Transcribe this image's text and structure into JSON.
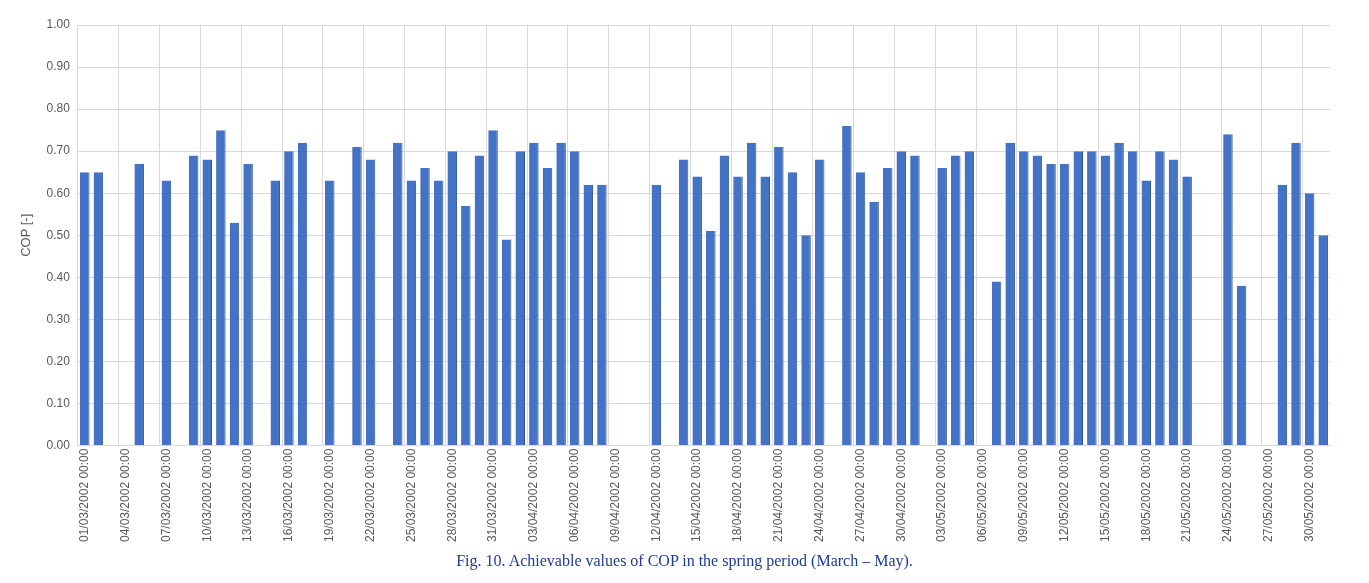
{
  "chart_data": {
    "type": "bar",
    "ylabel": "COP [-]",
    "categories": [
      "01/03/2002 00:00",
      null,
      null,
      "04/03/2002 00:00",
      null,
      null,
      "07/03/2002 00:00",
      null,
      null,
      "10/03/2002 00:00",
      null,
      null,
      "13/03/2002 00:00",
      null,
      null,
      "16/03/2002 00:00",
      null,
      null,
      "19/03/2002 00:00",
      null,
      null,
      "22/03/2002 00:00",
      null,
      null,
      "25/03/2002 00:00",
      null,
      null,
      "28/03/2002 00:00",
      null,
      null,
      "31/03/2002 00:00",
      null,
      null,
      "03/04/2002 00:00",
      null,
      null,
      "06/04/2002 00:00",
      null,
      null,
      "09/04/2002 00:00",
      null,
      null,
      "12/04/2002 00:00",
      null,
      null,
      "15/04/2002 00:00",
      null,
      null,
      "18/04/2002 00:00",
      null,
      null,
      "21/04/2002 00:00",
      null,
      null,
      "24/04/2002 00:00",
      null,
      null,
      "27/04/2002 00:00",
      null,
      null,
      "30/04/2002 00:00",
      null,
      null,
      "03/05/2002 00:00",
      null,
      null,
      "06/05/2002 00:00",
      null,
      null,
      "09/05/2002 00:00",
      null,
      null,
      "12/05/2002 00:00",
      null,
      null,
      "15/05/2002 00:00",
      null,
      null,
      "18/05/2002 00:00",
      null,
      null,
      "21/05/2002 00:00",
      null,
      null,
      "24/05/2002 00:00",
      null,
      null,
      "27/05/2002 00:00",
      null,
      null,
      "30/05/2002 00:00",
      null
    ],
    "values": [
      0.65,
      0.65,
      0,
      0,
      0.67,
      0,
      0.63,
      0,
      0.69,
      0.68,
      0.75,
      0.53,
      0.67,
      0,
      0.63,
      0.7,
      0.72,
      0,
      0.63,
      0,
      0.71,
      0.68,
      0,
      0.72,
      0.63,
      0.66,
      0.63,
      0.7,
      0.57,
      0.69,
      0.75,
      0.49,
      0.7,
      0.72,
      0.66,
      0.72,
      0.7,
      0.62,
      0.62,
      0,
      0,
      0,
      0.62,
      0,
      0.68,
      0.64,
      0.51,
      0.69,
      0.64,
      0.72,
      0.64,
      0.71,
      0.65,
      0.5,
      0.68,
      0,
      0.76,
      0.65,
      0.58,
      0.66,
      0.7,
      0.69,
      0,
      0.66,
      0.69,
      0.7,
      0,
      0.39,
      0.72,
      0.7,
      0.69,
      0.67,
      0.67,
      0.7,
      0.7,
      0.69,
      0.72,
      0.7,
      0.63,
      0.7,
      0.68,
      0.64,
      0,
      0,
      0.74,
      0.38,
      0,
      0,
      0.62,
      0.72,
      0.6,
      0.5
    ],
    "color": "#4472c4",
    "ylim": [
      0,
      1
    ],
    "yticks": [
      {
        "value": 0,
        "label": "0.00"
      },
      {
        "value": 0.1,
        "label": "0.10"
      },
      {
        "value": 0.2,
        "label": "0.20"
      },
      {
        "value": 0.3,
        "label": "0.30"
      },
      {
        "value": 0.4,
        "label": "0.40"
      },
      {
        "value": 0.5,
        "label": "0.50"
      },
      {
        "value": 0.6,
        "label": "0.60"
      },
      {
        "value": 0.7,
        "label": "0.70"
      },
      {
        "value": 0.8,
        "label": "0.80"
      },
      {
        "value": 0.9,
        "label": "0.90"
      },
      {
        "value": 1,
        "label": "1.00"
      }
    ],
    "grid": true,
    "annotations": [
      "Fig. 10. Achievable values of COP in the spring period (March – May)."
    ]
  }
}
